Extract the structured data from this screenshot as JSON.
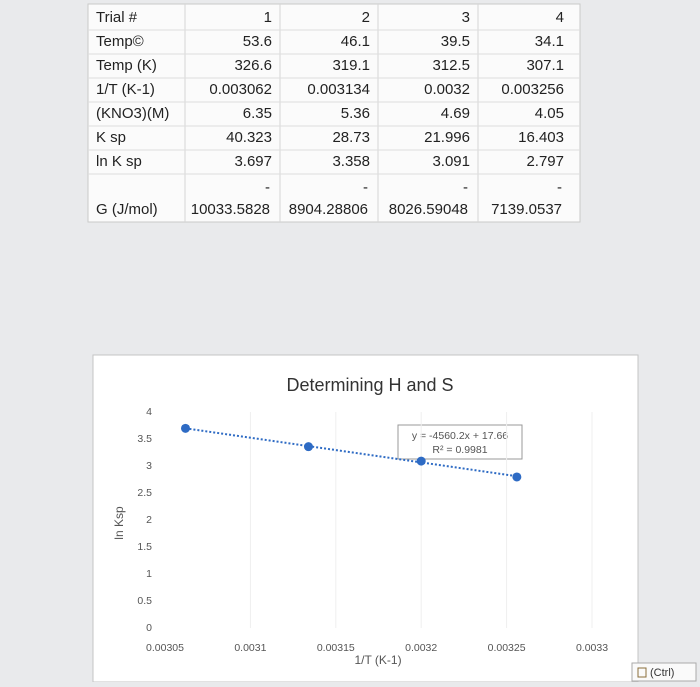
{
  "table": {
    "rows": [
      [
        "Trial #",
        "1",
        "2",
        "3",
        "4"
      ],
      [
        "Temp©",
        "53.6",
        "46.1",
        "39.5",
        "34.1"
      ],
      [
        "Temp (K)",
        "326.6",
        "319.1",
        "312.5",
        "307.1"
      ],
      [
        "1/T (K-1)",
        "0.003062",
        "0.003134",
        "0.0032",
        "0.003256"
      ],
      [
        "(KNO3)(M)",
        "6.35",
        "5.36",
        "4.69",
        "4.05"
      ],
      [
        "K sp",
        "40.323",
        "28.73",
        "21.996",
        "16.403"
      ],
      [
        "ln K sp",
        "3.697",
        "3.358",
        "3.091",
        "2.797"
      ]
    ],
    "sign_row": [
      "-",
      "-",
      "-",
      "-"
    ],
    "g_row": [
      "G (J/mol)",
      "10033.5828",
      "8904.28806",
      "8026.59048",
      "7139.0537"
    ]
  },
  "chart_data": {
    "type": "scatter",
    "title": "Determining H and S",
    "x_label": "1/T (K-1)",
    "y_label": "ln Ksp",
    "x": [
      0.003062,
      0.003134,
      0.0032,
      0.003256
    ],
    "values": [
      3.697,
      3.358,
      3.091,
      2.797
    ],
    "color": "#2e6bc4",
    "xlim": [
      0.00305,
      0.0033
    ],
    "xticks": [
      0.00305,
      0.0031,
      0.00315,
      0.0032,
      0.00325,
      0.0033
    ],
    "ylim": [
      0,
      4
    ],
    "yticks": [
      0,
      0.5,
      1,
      1.5,
      2,
      2.5,
      3,
      3.5,
      4
    ],
    "trendline": true,
    "trendline_equation": "y = -4560.2x + 17.66",
    "trendline_r2": "R² = 0.9981"
  },
  "ui": {
    "ctrl_button": "(Ctrl)"
  }
}
